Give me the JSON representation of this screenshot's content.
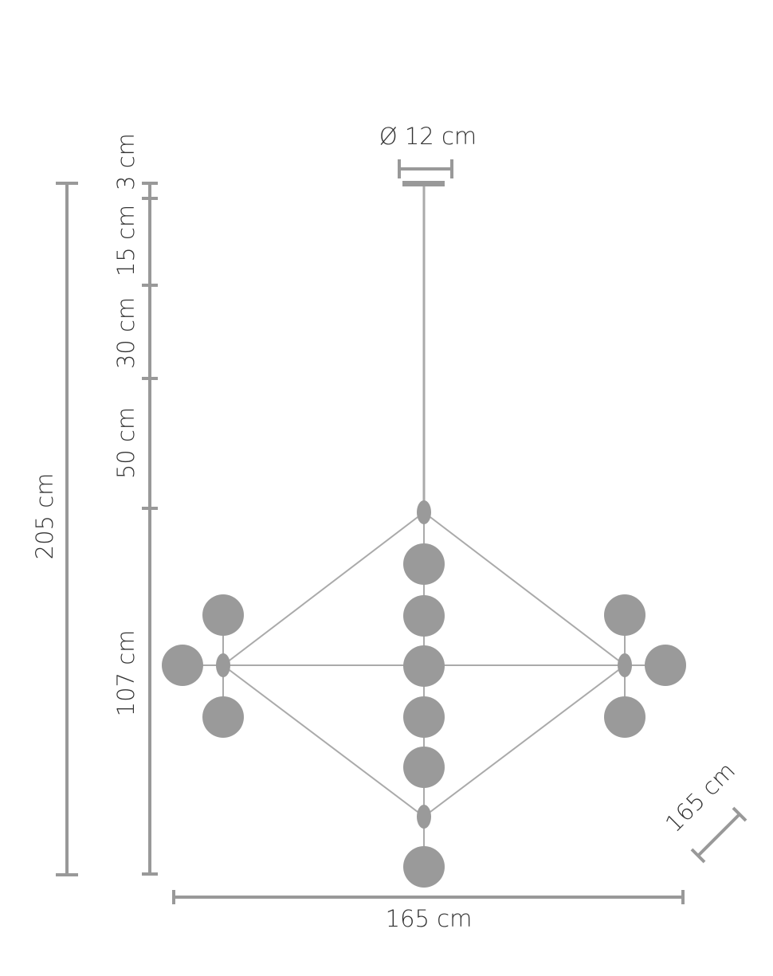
{
  "title": "Ø 12 cm",
  "heights": {
    "total": "205 cm",
    "segments": [
      "3 cm",
      "15 cm",
      "30 cm",
      "50 cm",
      "107 cm"
    ]
  },
  "width": "165 cm",
  "depth": "165 cm"
}
